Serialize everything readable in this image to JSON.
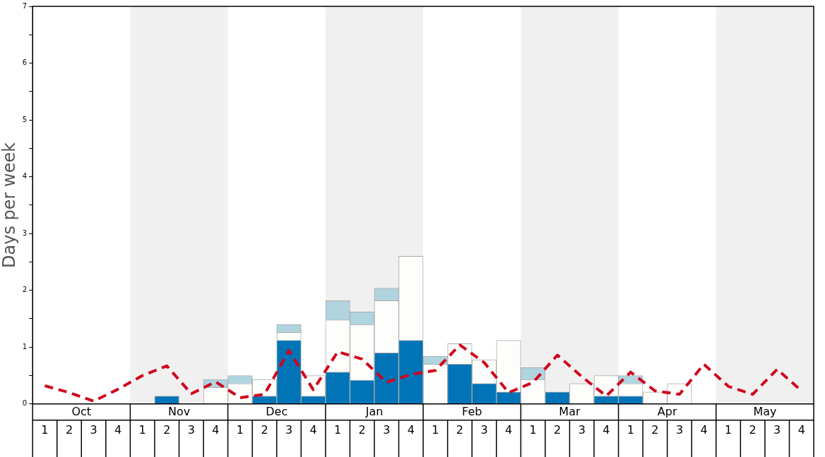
{
  "chart_data": {
    "type": "bar",
    "ylabel": "Days per week",
    "stacked": true,
    "categories": [
      "1",
      "2",
      "3",
      "4",
      "1",
      "2",
      "3",
      "4",
      "1",
      "2",
      "3",
      "4",
      "1",
      "2",
      "3",
      "4",
      "1",
      "2",
      "3",
      "4",
      "1",
      "2",
      "3",
      "4",
      "1",
      "2",
      "3",
      "4",
      "1",
      "2",
      "3",
      "4"
    ],
    "annotations": [
      "Oct",
      "Nov",
      "Dec",
      "Jan",
      "Feb",
      "Mar",
      "Apr",
      "May"
    ],
    "series": [
      {
        "color": "#0074b7",
        "values": [
          0,
          0,
          0,
          0,
          0,
          0.14,
          0,
          0,
          0,
          0.14,
          1.12,
          0.14,
          0.56,
          0.42,
          0.9,
          1.12,
          0,
          0.7,
          0.36,
          0.21,
          0,
          0.21,
          0,
          0.14,
          0.14,
          0,
          0,
          0,
          0,
          0,
          0,
          0
        ]
      },
      {
        "color": "#fdfdfb",
        "values": [
          0,
          0,
          0,
          0,
          0,
          0,
          0,
          0.29,
          0.36,
          0.29,
          0.14,
          0.36,
          0.92,
          0.98,
          0.92,
          1.48,
          0.7,
          0.36,
          0.42,
          0.91,
          0.43,
          0,
          0.36,
          0.36,
          0.22,
          0.21,
          0.36,
          0,
          0,
          0,
          0,
          0
        ]
      },
      {
        "color": "#b0d4e0",
        "values": [
          0,
          0,
          0,
          0,
          0,
          0,
          0,
          0.14,
          0.14,
          0,
          0.14,
          0,
          0.34,
          0.22,
          0.22,
          0,
          0.14,
          0,
          0,
          0,
          0.21,
          0,
          0,
          0,
          0.14,
          0,
          0,
          0,
          0,
          0,
          0,
          0
        ]
      },
      {
        "type": "line",
        "color": "#d0021b",
        "line_style": "dashed",
        "marker": "none",
        "values": [
          0.32,
          0.2,
          0.05,
          0.26,
          0.5,
          0.67,
          0.18,
          0.39,
          0.11,
          0.17,
          0.94,
          0.25,
          0.92,
          0.79,
          0.38,
          0.52,
          0.59,
          1.04,
          0.73,
          0.2,
          0.38,
          0.86,
          0.48,
          0.14,
          0.56,
          0.23,
          0.17,
          0.7,
          0.31,
          0.17,
          0.61,
          0.23
        ]
      }
    ],
    "ylim": [
      0,
      7
    ],
    "yticks": [
      0,
      {
        "value": 0.5,
        "label": null
      },
      1,
      {
        "value": 1.5,
        "label": null
      },
      2,
      {
        "value": 2.5,
        "label": null
      },
      3,
      {
        "value": 3.5,
        "label": null
      },
      4,
      {
        "value": 4.5,
        "label": null
      },
      5,
      {
        "value": 5.5,
        "label": null
      },
      6,
      {
        "value": 6.5,
        "label": null
      },
      7
    ],
    "grid": false,
    "legend": false
  }
}
